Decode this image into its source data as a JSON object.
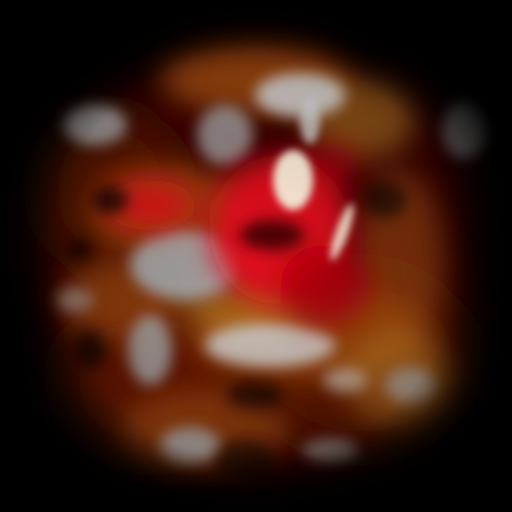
{
  "image": {
    "subject": "",
    "caption": ""
  },
  "palette": {
    "background": "#000000",
    "dark_red": "#3a0600",
    "rust": "#7a1d06",
    "copper": "#a8500f",
    "amber": "#c98a2c",
    "grey": "#a9a9a9",
    "pale_grey": "#d6d6d6",
    "red": "#e6101a",
    "deep_red": "#b0050d",
    "hot_core": "#fff6e0"
  }
}
